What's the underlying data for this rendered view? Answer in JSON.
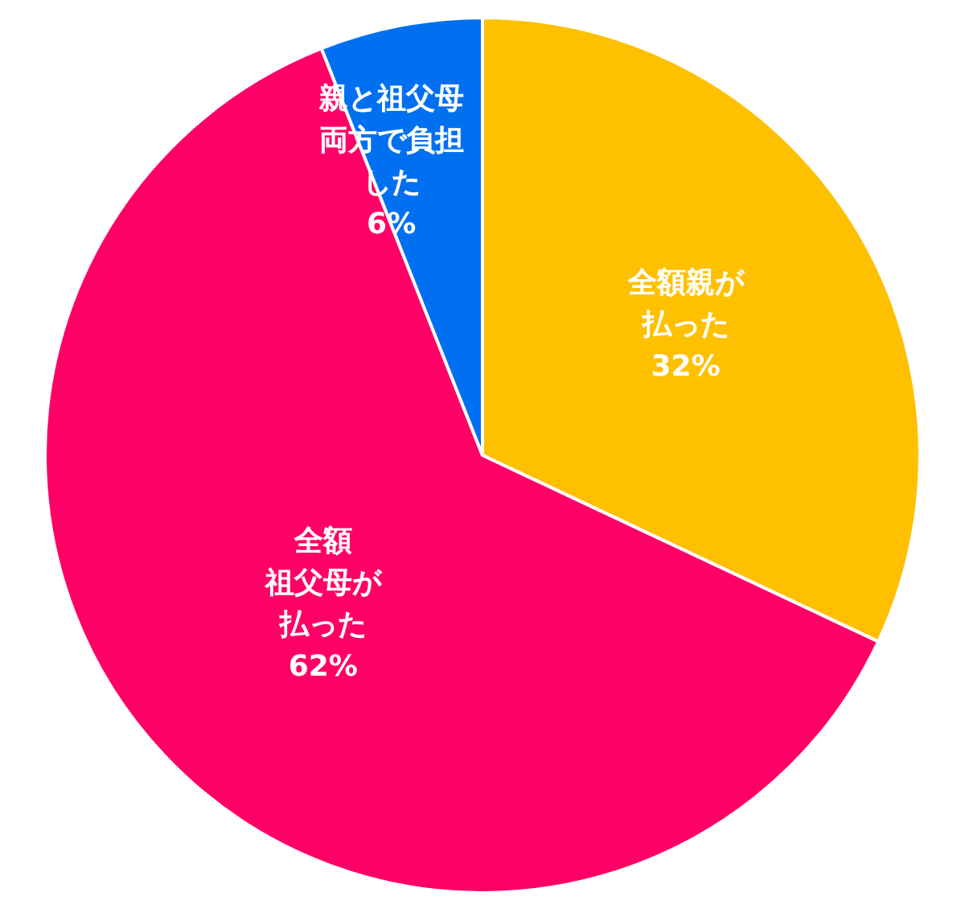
{
  "chart_data": {
    "type": "pie",
    "categories": [
      "全額親が払った",
      "全額祖父母が払った",
      "親と祖父母両方で負担した"
    ],
    "values": [
      32,
      62,
      6
    ],
    "colors": [
      "#ffc000",
      "#ff0066",
      "#0070f0"
    ],
    "value_labels": [
      "32%",
      "62%",
      "6%"
    ],
    "legend": false
  }
}
